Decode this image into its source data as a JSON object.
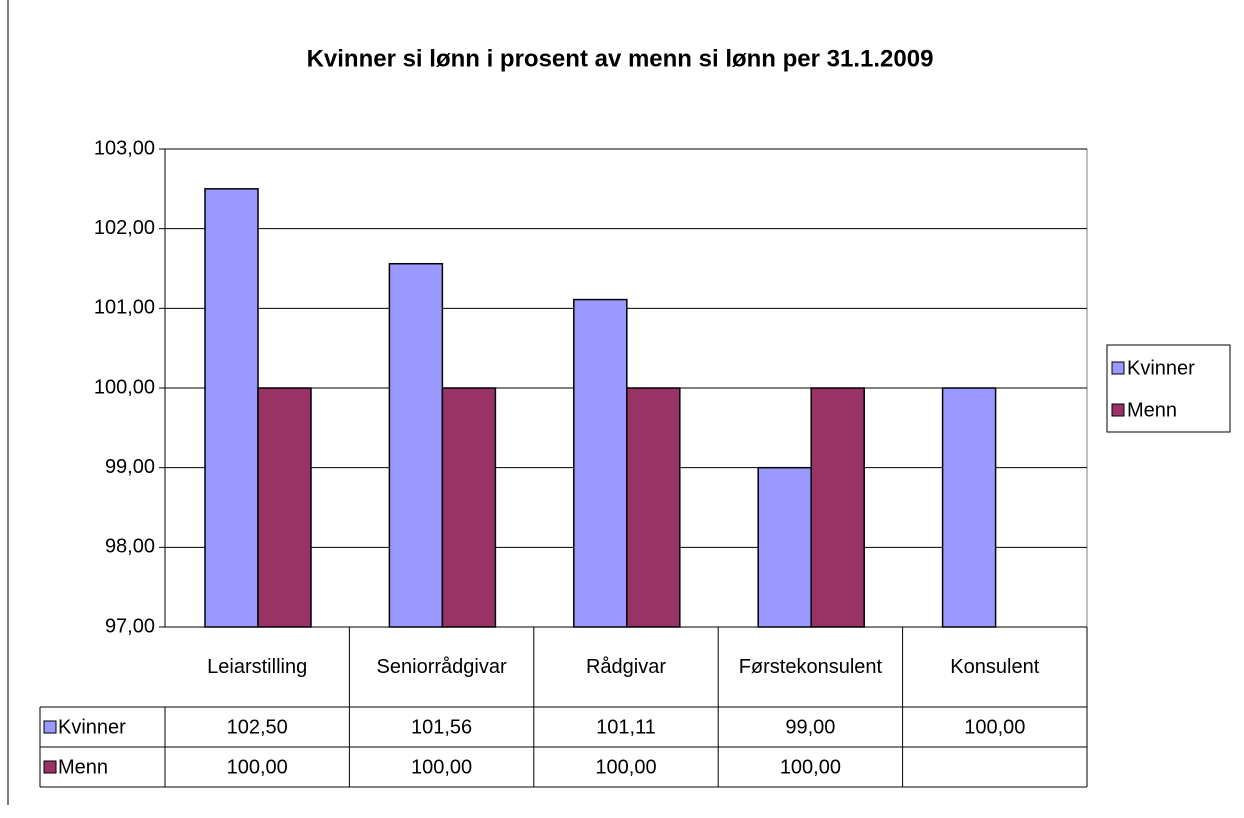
{
  "chart_data": {
    "type": "bar",
    "title": "Kvinner si lønn i prosent av menn si lønn per 31.1.2009",
    "categories": [
      "Leiarstilling",
      "Seniorrådgivar",
      "Rådgivar",
      "Førstekonsulent",
      "Konsulent"
    ],
    "series": [
      {
        "name": "Kvinner",
        "color": "#9999ff",
        "values": [
          102.5,
          101.56,
          101.11,
          99,
          100
        ],
        "value_labels": [
          "102,50",
          "101,56",
          "101,11",
          "99,00",
          "100,00"
        ]
      },
      {
        "name": "Menn",
        "color": "#993366",
        "values": [
          100,
          100,
          100,
          100,
          null
        ],
        "value_labels": [
          "100,00",
          "100,00",
          "100,00",
          "100,00",
          null
        ]
      }
    ],
    "ylim": [
      97,
      103
    ],
    "yticks": [
      {
        "value": 97,
        "label": "97,00"
      },
      {
        "value": 98,
        "label": "98,00"
      },
      {
        "value": 99,
        "label": "99,00"
      },
      {
        "value": 100,
        "label": "100,00"
      },
      {
        "value": 101,
        "label": "101,00"
      },
      {
        "value": 102,
        "label": "102,00"
      },
      {
        "value": 103,
        "label": "103,00"
      }
    ],
    "grid": true,
    "legend": "right"
  }
}
